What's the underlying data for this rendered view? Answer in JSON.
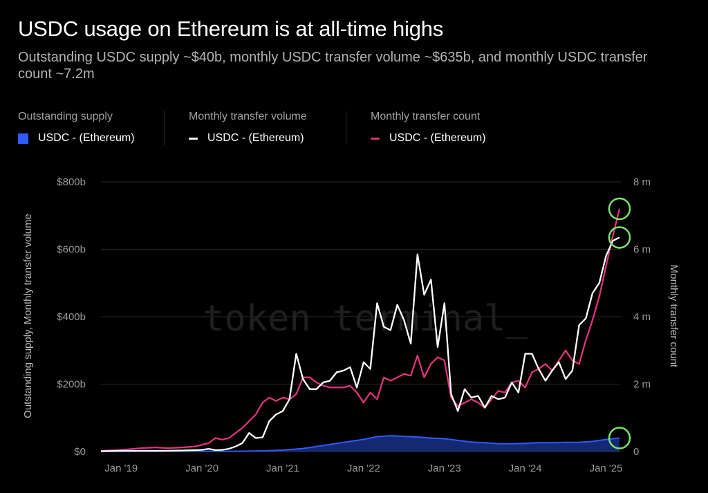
{
  "title": "USDC usage on Ethereum is at all-time highs",
  "subtitle": "Outstanding USDC supply ~$40b, monthly USDC transfer volume ~$635b, and monthly USDC transfer count ~7.2m",
  "legend": [
    {
      "heading": "Outstanding supply",
      "label": "USDC - (Ethereum)",
      "color": "#2f5bff",
      "kind": "square"
    },
    {
      "heading": "Monthly transfer volume",
      "label": "USDC - (Ethereum)",
      "color": "#ffffff",
      "kind": "line"
    },
    {
      "heading": "Monthly transfer count",
      "label": "USDC - (Ethereum)",
      "color": "#e0357a",
      "kind": "line"
    }
  ],
  "watermark": "token terminal_",
  "chart_data": {
    "type": "line",
    "x_labels": [
      "Jan '19",
      "Jan '20",
      "Jan '21",
      "Jan '22",
      "Jan '23",
      "Jan '24",
      "Jan '25"
    ],
    "x_range": [
      "2018-10",
      "2025-03"
    ],
    "y_left": {
      "label": "Outstanding supply, Monthly transfer volume",
      "range": [
        0,
        800
      ],
      "ticks": [
        "$0",
        "$200b",
        "$400b",
        "$600b",
        "$800b"
      ],
      "unit": "$b"
    },
    "y_right": {
      "label": "Monthly transfer count",
      "range": [
        0,
        8
      ],
      "ticks": [
        "0",
        "2 m",
        "4 m",
        "6 m",
        "8 m"
      ],
      "unit": "m"
    },
    "grid": true,
    "series": [
      {
        "name": "Outstanding supply",
        "axis": "left",
        "style": "area",
        "color": "#2f5bff",
        "points": [
          [
            "2018-10",
            0.1
          ],
          [
            "2019-01",
            0.3
          ],
          [
            "2019-04",
            0.4
          ],
          [
            "2019-07",
            0.5
          ],
          [
            "2019-10",
            0.5
          ],
          [
            "2020-01",
            0.5
          ],
          [
            "2020-04",
            0.7
          ],
          [
            "2020-07",
            1
          ],
          [
            "2020-10",
            2
          ],
          [
            "2021-01",
            4
          ],
          [
            "2021-04",
            9
          ],
          [
            "2021-07",
            18
          ],
          [
            "2021-10",
            27
          ],
          [
            "2022-01",
            36
          ],
          [
            "2022-03",
            44
          ],
          [
            "2022-05",
            47
          ],
          [
            "2022-07",
            45
          ],
          [
            "2022-09",
            43
          ],
          [
            "2022-11",
            40
          ],
          [
            "2023-01",
            38
          ],
          [
            "2023-03",
            33
          ],
          [
            "2023-05",
            28
          ],
          [
            "2023-07",
            26
          ],
          [
            "2023-09",
            23
          ],
          [
            "2023-11",
            23
          ],
          [
            "2024-01",
            24
          ],
          [
            "2024-03",
            26
          ],
          [
            "2024-05",
            26
          ],
          [
            "2024-07",
            27
          ],
          [
            "2024-09",
            27
          ],
          [
            "2024-11",
            30
          ],
          [
            "2025-01",
            36
          ],
          [
            "2025-03",
            40
          ]
        ]
      },
      {
        "name": "Monthly transfer volume",
        "axis": "left",
        "style": "line",
        "color": "#ffffff",
        "points": [
          [
            "2018-10",
            1
          ],
          [
            "2019-01",
            2
          ],
          [
            "2019-04",
            2
          ],
          [
            "2019-07",
            2
          ],
          [
            "2019-10",
            3
          ],
          [
            "2020-01",
            5
          ],
          [
            "2020-02",
            8
          ],
          [
            "2020-03",
            4
          ],
          [
            "2020-04",
            5
          ],
          [
            "2020-05",
            8
          ],
          [
            "2020-06",
            15
          ],
          [
            "2020-07",
            25
          ],
          [
            "2020-08",
            55
          ],
          [
            "2020-09",
            40
          ],
          [
            "2020-10",
            42
          ],
          [
            "2020-11",
            90
          ],
          [
            "2020-12",
            110
          ],
          [
            "2021-01",
            120
          ],
          [
            "2021-02",
            155
          ],
          [
            "2021-03",
            290
          ],
          [
            "2021-04",
            215
          ],
          [
            "2021-05",
            185
          ],
          [
            "2021-06",
            185
          ],
          [
            "2021-07",
            205
          ],
          [
            "2021-08",
            210
          ],
          [
            "2021-09",
            235
          ],
          [
            "2021-10",
            240
          ],
          [
            "2021-11",
            250
          ],
          [
            "2021-12",
            190
          ],
          [
            "2022-01",
            265
          ],
          [
            "2022-02",
            245
          ],
          [
            "2022-03",
            440
          ],
          [
            "2022-04",
            370
          ],
          [
            "2022-05",
            360
          ],
          [
            "2022-06",
            435
          ],
          [
            "2022-07",
            390
          ],
          [
            "2022-08",
            320
          ],
          [
            "2022-09",
            585
          ],
          [
            "2022-10",
            465
          ],
          [
            "2022-11",
            510
          ],
          [
            "2022-12",
            310
          ],
          [
            "2023-01",
            440
          ],
          [
            "2023-02",
            170
          ],
          [
            "2023-03",
            120
          ],
          [
            "2023-04",
            185
          ],
          [
            "2023-05",
            160
          ],
          [
            "2023-06",
            165
          ],
          [
            "2023-07",
            130
          ],
          [
            "2023-08",
            165
          ],
          [
            "2023-09",
            155
          ],
          [
            "2023-10",
            160
          ],
          [
            "2023-11",
            205
          ],
          [
            "2023-12",
            175
          ],
          [
            "2024-01",
            290
          ],
          [
            "2024-02",
            290
          ],
          [
            "2024-03",
            245
          ],
          [
            "2024-04",
            210
          ],
          [
            "2024-05",
            240
          ],
          [
            "2024-06",
            265
          ],
          [
            "2024-07",
            215
          ],
          [
            "2024-08",
            240
          ],
          [
            "2024-09",
            375
          ],
          [
            "2024-10",
            395
          ],
          [
            "2024-11",
            470
          ],
          [
            "2024-12",
            500
          ],
          [
            "2025-01",
            580
          ],
          [
            "2025-02",
            625
          ],
          [
            "2025-03",
            635
          ]
        ]
      },
      {
        "name": "Monthly transfer count",
        "axis": "right",
        "style": "line",
        "color": "#e0357a",
        "points": [
          [
            "2018-10",
            0.02
          ],
          [
            "2019-01",
            0.05
          ],
          [
            "2019-04",
            0.1
          ],
          [
            "2019-06",
            0.12
          ],
          [
            "2019-08",
            0.1
          ],
          [
            "2019-10",
            0.12
          ],
          [
            "2019-12",
            0.15
          ],
          [
            "2020-02",
            0.25
          ],
          [
            "2020-03",
            0.4
          ],
          [
            "2020-04",
            0.35
          ],
          [
            "2020-05",
            0.4
          ],
          [
            "2020-06",
            0.55
          ],
          [
            "2020-07",
            0.7
          ],
          [
            "2020-08",
            0.9
          ],
          [
            "2020-09",
            1.1
          ],
          [
            "2020-10",
            1.45
          ],
          [
            "2020-11",
            1.6
          ],
          [
            "2020-12",
            1.5
          ],
          [
            "2021-01",
            1.6
          ],
          [
            "2021-02",
            1.55
          ],
          [
            "2021-03",
            1.7
          ],
          [
            "2021-04",
            2.2
          ],
          [
            "2021-05",
            2.2
          ],
          [
            "2021-06",
            2.05
          ],
          [
            "2021-07",
            1.95
          ],
          [
            "2021-08",
            1.9
          ],
          [
            "2021-09",
            1.9
          ],
          [
            "2021-10",
            1.9
          ],
          [
            "2021-11",
            1.95
          ],
          [
            "2021-12",
            1.75
          ],
          [
            "2022-01",
            1.45
          ],
          [
            "2022-02",
            1.75
          ],
          [
            "2022-03",
            1.55
          ],
          [
            "2022-04",
            2.2
          ],
          [
            "2022-05",
            2.1
          ],
          [
            "2022-06",
            2.2
          ],
          [
            "2022-07",
            2.3
          ],
          [
            "2022-08",
            2.25
          ],
          [
            "2022-09",
            2.85
          ],
          [
            "2022-10",
            2.2
          ],
          [
            "2022-11",
            2.6
          ],
          [
            "2022-12",
            2.8
          ],
          [
            "2023-01",
            2.7
          ],
          [
            "2023-02",
            1.6
          ],
          [
            "2023-03",
            1.35
          ],
          [
            "2023-04",
            1.45
          ],
          [
            "2023-05",
            1.55
          ],
          [
            "2023-06",
            1.45
          ],
          [
            "2023-07",
            1.3
          ],
          [
            "2023-08",
            1.55
          ],
          [
            "2023-09",
            1.8
          ],
          [
            "2023-10",
            1.75
          ],
          [
            "2023-11",
            2.05
          ],
          [
            "2023-12",
            2.1
          ],
          [
            "2024-01",
            1.9
          ],
          [
            "2024-02",
            2.35
          ],
          [
            "2024-03",
            2.45
          ],
          [
            "2024-04",
            2.6
          ],
          [
            "2024-05",
            2.4
          ],
          [
            "2024-06",
            2.7
          ],
          [
            "2024-07",
            3.0
          ],
          [
            "2024-08",
            2.7
          ],
          [
            "2024-09",
            2.6
          ],
          [
            "2024-10",
            3.3
          ],
          [
            "2024-11",
            3.9
          ],
          [
            "2024-12",
            4.6
          ],
          [
            "2025-01",
            5.5
          ],
          [
            "2025-02",
            6.4
          ],
          [
            "2025-03",
            7.2
          ]
        ]
      }
    ],
    "highlights": [
      {
        "series": "Monthly transfer count",
        "x": "2025-03",
        "value": 7.2
      },
      {
        "series": "Monthly transfer volume",
        "x": "2025-03",
        "value": 635
      },
      {
        "series": "Outstanding supply",
        "x": "2025-03",
        "value": 40
      }
    ],
    "highlight_color": "#7ee36f"
  }
}
